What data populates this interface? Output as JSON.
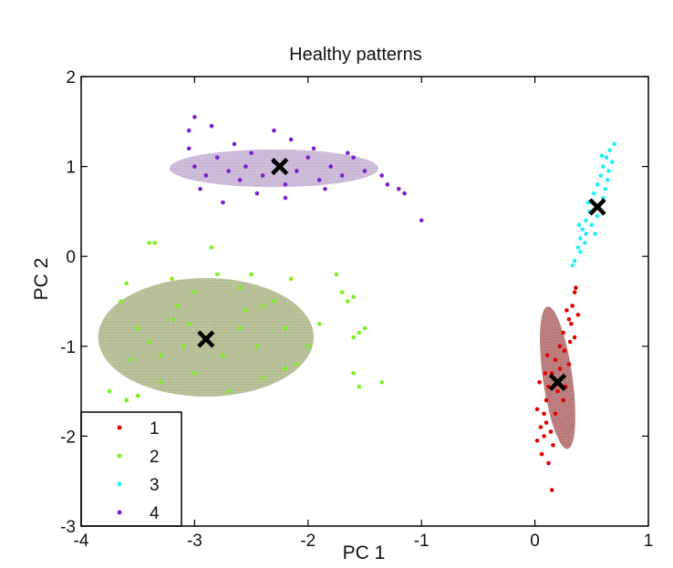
{
  "chart_data": {
    "type": "scatter",
    "title": "Healthy patterns",
    "xlabel": "PC 1",
    "ylabel": "PC 2",
    "xlim": [
      -4,
      1
    ],
    "ylim": [
      -3,
      2
    ],
    "x_ticks": [
      -4,
      -3,
      -2,
      -1,
      0,
      1
    ],
    "y_ticks": [
      -3,
      -2,
      -1,
      0,
      1,
      2
    ],
    "x_tick_labels": [
      "-4",
      "-3",
      "-2",
      "-1",
      "0",
      "1"
    ],
    "y_tick_labels": [
      "-3",
      "-2",
      "-1",
      "0",
      "1",
      "2"
    ],
    "grid": false,
    "legend_position": "bottom-left",
    "series": [
      {
        "name": "1",
        "color": "#e00000",
        "centroid": [
          0.2,
          -1.4
        ],
        "ellipse": {
          "cx": 0.2,
          "cy": -1.35,
          "rx": 0.13,
          "ry": 0.8,
          "angle_deg": 8,
          "fill": "#a04a4a"
        },
        "points": [
          [
            0.02,
            -2.05
          ],
          [
            0.05,
            -1.9
          ],
          [
            0.08,
            -1.75
          ],
          [
            0.1,
            -1.6
          ],
          [
            0.12,
            -1.45
          ],
          [
            0.15,
            -1.3
          ],
          [
            0.18,
            -1.15
          ],
          [
            0.22,
            -1.0
          ],
          [
            0.25,
            -0.85
          ],
          [
            0.3,
            -0.7
          ],
          [
            0.33,
            -0.55
          ],
          [
            0.35,
            -0.4
          ],
          [
            0.12,
            -2.3
          ],
          [
            0.15,
            -2.6
          ],
          [
            0.06,
            -2.2
          ],
          [
            0.25,
            -1.6
          ],
          [
            0.3,
            -1.2
          ],
          [
            0.02,
            -1.7
          ],
          [
            0.35,
            -0.9
          ],
          [
            0.08,
            -2.0
          ],
          [
            0.2,
            -1.5
          ],
          [
            0.28,
            -0.6
          ],
          [
            0.1,
            -1.85
          ],
          [
            0.14,
            -1.95
          ],
          [
            0.32,
            -0.75
          ],
          [
            0.04,
            -1.4
          ],
          [
            0.26,
            -1.05
          ],
          [
            0.38,
            -0.65
          ],
          [
            0.18,
            -1.75
          ],
          [
            0.22,
            -1.25
          ],
          [
            0.36,
            -0.35
          ],
          [
            0.16,
            -2.1
          ],
          [
            0.09,
            -1.3
          ],
          [
            0.27,
            -1.45
          ],
          [
            0.31,
            -0.95
          ],
          [
            0.11,
            -1.1
          ]
        ]
      },
      {
        "name": "2",
        "color": "#7df020",
        "centroid": [
          -2.9,
          -0.92
        ],
        "ellipse": {
          "cx": -2.9,
          "cy": -0.9,
          "rx": 0.95,
          "ry": 0.66,
          "angle_deg": 0,
          "fill": "#9aa870"
        },
        "points": [
          [
            -3.75,
            -1.5
          ],
          [
            -3.6,
            -1.6
          ],
          [
            -3.5,
            -1.55
          ],
          [
            -3.3,
            -1.4
          ],
          [
            -3.55,
            -1.15
          ],
          [
            -3.4,
            -0.95
          ],
          [
            -3.2,
            -0.7
          ],
          [
            -3.0,
            -0.4
          ],
          [
            -2.8,
            -0.2
          ],
          [
            -2.6,
            -0.35
          ],
          [
            -2.4,
            -0.55
          ],
          [
            -2.2,
            -0.8
          ],
          [
            -2.0,
            -1.0
          ],
          [
            -2.1,
            -1.2
          ],
          [
            -2.4,
            -1.35
          ],
          [
            -2.7,
            -1.5
          ],
          [
            -3.0,
            -1.3
          ],
          [
            -3.3,
            -1.1
          ],
          [
            -2.9,
            -0.9
          ],
          [
            -3.1,
            -1.0
          ],
          [
            -2.6,
            -0.8
          ],
          [
            -2.3,
            -0.5
          ],
          [
            -1.9,
            -0.75
          ],
          [
            -3.35,
            0.15
          ],
          [
            -3.4,
            0.15
          ],
          [
            -2.85,
            0.1
          ],
          [
            -3.6,
            -0.3
          ],
          [
            -3.65,
            -0.5
          ],
          [
            -1.75,
            -0.2
          ],
          [
            -1.7,
            -0.4
          ],
          [
            -1.6,
            -0.45
          ],
          [
            -1.65,
            -0.5
          ],
          [
            -1.6,
            -0.9
          ],
          [
            -1.55,
            -0.85
          ],
          [
            -1.6,
            -1.3
          ],
          [
            -1.55,
            -1.45
          ],
          [
            -1.5,
            -0.8
          ],
          [
            -1.35,
            -1.4
          ],
          [
            -2.15,
            -0.25
          ],
          [
            -2.5,
            -0.2
          ],
          [
            -3.2,
            -0.25
          ],
          [
            -3.5,
            -0.8
          ],
          [
            -3.15,
            -0.55
          ],
          [
            -2.75,
            -1.1
          ],
          [
            -2.45,
            -1.0
          ],
          [
            -2.55,
            -0.6
          ],
          [
            -3.05,
            -0.75
          ],
          [
            -2.2,
            -1.25
          ]
        ]
      },
      {
        "name": "3",
        "color": "#20f0f5",
        "centroid": [
          0.55,
          0.55
        ],
        "ellipse": null,
        "points": [
          [
            0.35,
            -0.05
          ],
          [
            0.38,
            0.1
          ],
          [
            0.4,
            0.2
          ],
          [
            0.42,
            0.3
          ],
          [
            0.45,
            0.4
          ],
          [
            0.48,
            0.5
          ],
          [
            0.5,
            0.6
          ],
          [
            0.52,
            0.7
          ],
          [
            0.55,
            0.8
          ],
          [
            0.58,
            0.9
          ],
          [
            0.6,
            1.0
          ],
          [
            0.63,
            1.1
          ],
          [
            0.66,
            1.18
          ],
          [
            0.7,
            1.25
          ],
          [
            0.33,
            -0.1
          ],
          [
            0.4,
            0.05
          ],
          [
            0.45,
            0.25
          ],
          [
            0.5,
            0.35
          ],
          [
            0.55,
            0.45
          ],
          [
            0.6,
            0.65
          ],
          [
            0.62,
            0.75
          ],
          [
            0.65,
            0.95
          ],
          [
            0.68,
            1.05
          ],
          [
            0.57,
            0.55
          ],
          [
            0.47,
            0.6
          ],
          [
            0.53,
            0.25
          ],
          [
            0.64,
            0.85
          ],
          [
            0.44,
            0.15
          ],
          [
            0.59,
            1.12
          ],
          [
            0.39,
            0.35
          ]
        ]
      },
      {
        "name": "4",
        "color": "#7a20d0",
        "centroid": [
          -2.25,
          1.0
        ],
        "ellipse": {
          "cx": -2.3,
          "cy": 0.98,
          "rx": 0.92,
          "ry": 0.21,
          "angle_deg": 0,
          "fill": "#b8a0c8"
        },
        "points": [
          [
            -3.05,
            1.2
          ],
          [
            -3.0,
            1.0
          ],
          [
            -2.9,
            0.9
          ],
          [
            -2.8,
            1.1
          ],
          [
            -2.7,
            0.95
          ],
          [
            -2.6,
            0.85
          ],
          [
            -2.5,
            1.15
          ],
          [
            -2.4,
            0.9
          ],
          [
            -2.3,
            1.05
          ],
          [
            -2.2,
            0.8
          ],
          [
            -2.1,
            0.95
          ],
          [
            -2.0,
            1.1
          ],
          [
            -1.9,
            0.85
          ],
          [
            -1.8,
            1.0
          ],
          [
            -1.7,
            0.9
          ],
          [
            -1.6,
            1.1
          ],
          [
            -1.5,
            0.95
          ],
          [
            -1.35,
            0.9
          ],
          [
            -3.05,
            1.4
          ],
          [
            -3.0,
            1.55
          ],
          [
            -2.85,
            1.45
          ],
          [
            -2.3,
            1.4
          ],
          [
            -2.15,
            1.3
          ],
          [
            -2.75,
            0.6
          ],
          [
            -2.2,
            0.65
          ],
          [
            -1.3,
            0.8
          ],
          [
            -1.15,
            0.7
          ],
          [
            -1.0,
            0.4
          ],
          [
            -1.2,
            0.75
          ],
          [
            -2.95,
            0.75
          ],
          [
            -2.65,
            1.25
          ],
          [
            -1.95,
            1.2
          ],
          [
            -2.45,
            0.7
          ],
          [
            -1.85,
            0.75
          ],
          [
            -2.55,
            1.0
          ],
          [
            -1.65,
            1.15
          ]
        ]
      }
    ]
  }
}
